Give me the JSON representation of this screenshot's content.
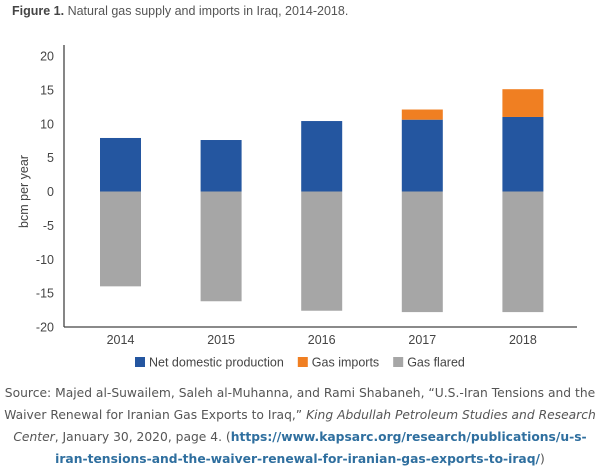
{
  "figure": {
    "label": "Figure 1.",
    "caption": "Natural gas supply and imports in Iraq, 2014-2018."
  },
  "chart_data": {
    "type": "bar",
    "stacked": true,
    "title": "Natural gas supply and imports in Iraq, 2014-2018.",
    "xlabel": "",
    "ylabel": "bcm per year",
    "ylim": [
      -20,
      20
    ],
    "yticks": [
      20,
      15,
      10,
      5,
      0,
      -5,
      -10,
      -15,
      -20
    ],
    "grid": false,
    "legend_position": "bottom",
    "categories": [
      "2014",
      "2015",
      "2016",
      "2017",
      "2018"
    ],
    "series": [
      {
        "name": "Net domestic production",
        "color": "#2456a0",
        "values": [
          7.9,
          7.6,
          10.4,
          10.6,
          11.0
        ]
      },
      {
        "name": "Gas imports",
        "color": "#f07f22",
        "values": [
          0,
          0,
          0,
          1.5,
          4.1
        ]
      },
      {
        "name": "Gas flared",
        "color": "#a6a6a6",
        "values": [
          -14.0,
          -16.2,
          -17.6,
          -17.8,
          -17.8
        ]
      }
    ]
  },
  "source": {
    "prefix": "Source: Majed al-Suwailem, Saleh al-Muhanna, and Rami Shabaneh, “U.S.-Iran Tensions and the Waiver Renewal for Iranian Gas Exports to Iraq,” ",
    "publisher": "King Abdullah Petroleum Studies and Research Center",
    "date_page": ", January 30, 2020, page 4. (",
    "url": "https://www.kapsarc.org/research/publications/u-s-iran-tensions-and-the-waiver-renewal-for-iranian-gas-exports-to-iraq/",
    "suffix": ")"
  }
}
